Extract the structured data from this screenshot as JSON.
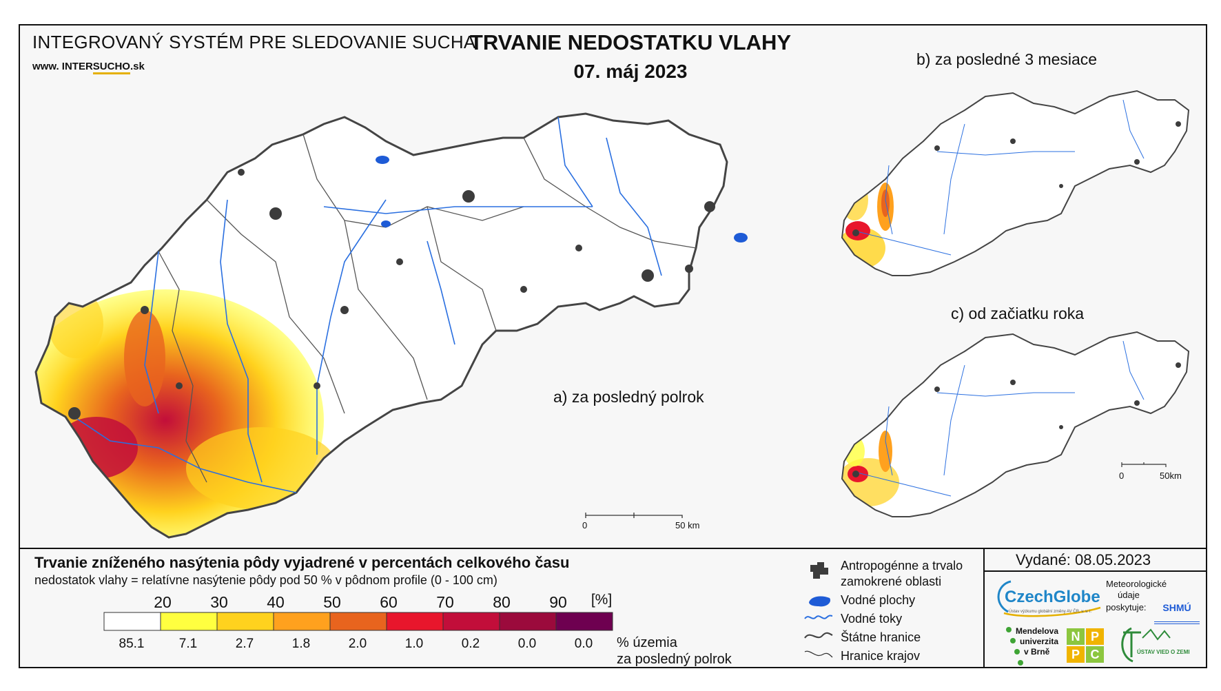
{
  "header": {
    "system_title": "INTEGROVANÝ SYSTÉM PRE SLEDOVANIE SUCHA",
    "website": {
      "prefix": "www. ",
      "name_plain": "INTER",
      "name_underlined": "SUCHO",
      "suffix": ".sk"
    },
    "main_title": "TRVANIE NEDOSTATKU VLAHY",
    "date": "07. máj 2023"
  },
  "maps": {
    "a_label": "a) za posledný polrok",
    "b_label": "b) za posledné 3 mesiace",
    "c_label": "c) od začiatku roka",
    "scale_main": {
      "zero": "0",
      "end": "50 km"
    },
    "scale_small": {
      "zero": "0",
      "end": "50km"
    }
  },
  "legend": {
    "title": "Trvanie zníženého nasýtenia pôdy vyjadrené v percentách celkového času",
    "subtitle": "nedostatok vlahy = relatívne nasýtenie pôdy pod 50 % v pôdnom profile (0 - 100 cm)",
    "unit": "[%]",
    "thresholds": [
      "20",
      "30",
      "40",
      "50",
      "60",
      "70",
      "80",
      "90"
    ],
    "colors": [
      "#ffffff",
      "#ffff40",
      "#ffd21e",
      "#ffa11e",
      "#e8641e",
      "#e8162c",
      "#c20e3a",
      "#9b0a3c",
      "#6e0050"
    ],
    "percentages": [
      "85.1",
      "7.1",
      "2.7",
      "1.8",
      "2.0",
      "1.0",
      "0.2",
      "0.0",
      "0.0"
    ],
    "pct_caption_line1": "% územia",
    "pct_caption_line2": "za posledný polrok"
  },
  "symbols": {
    "urban": "Antropogénne a trvalo zamokrené oblasti",
    "urban_line1": "Antropogénne a trvalo",
    "urban_line2": "zamokrené oblasti",
    "water_bodies": "Vodné plochy",
    "rivers": "Vodné toky",
    "state_border": "Štátne hranice",
    "region_border": "Hranice krajov",
    "water_color": "#1e5bd6",
    "river_color": "#2a6fe0",
    "urban_color": "#3c3c3c"
  },
  "footer": {
    "issued": "Vydané: 08.05.2023",
    "czechglobe": "CzechGlobe",
    "czechglobe_sub": "Ústav výzkumu globální změny AV ČR, v. v. i.",
    "meteo_line1": "Meteorologické",
    "meteo_line2": "údaje",
    "meteo_line3": "poskytuje:",
    "shmu": "SHMÚ",
    "mendel_line1": "Mendelova",
    "mendel_line2": "univerzita",
    "mendel_line3": "v Brně",
    "nppc": [
      "N",
      "P",
      "P",
      "C"
    ],
    "uvz": "ÚSTAV VIED O ZEMI"
  }
}
